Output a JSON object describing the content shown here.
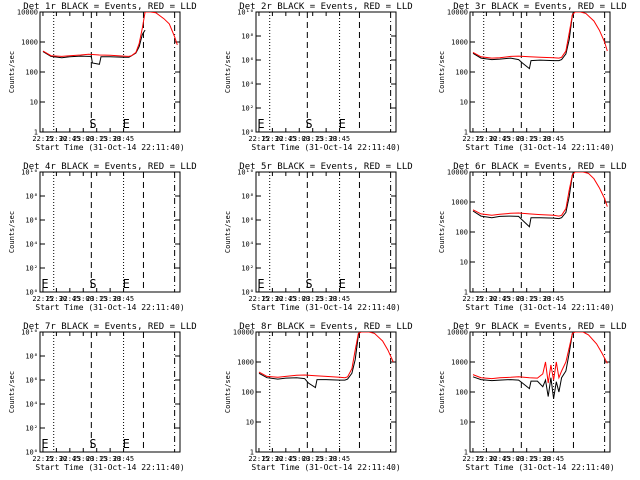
{
  "x_tick_labels": [
    "22:15",
    "22:30",
    "22:45",
    "23:00",
    "23:15",
    "23:30",
    "23:45"
  ],
  "xlabel": "Start Time (31-Oct-14 22:11:40)",
  "ylabel": "Counts/sec",
  "colors": {
    "events": "#000000",
    "lld": "#ff0000",
    "axis": "#000000",
    "background": "#ffffff"
  },
  "chart_data": [
    {
      "type": "line",
      "title": "Det 1r BLACK = Events, RED = LLD",
      "ylog": true,
      "ylim": [
        1,
        10000
      ],
      "y_tick_labels": [
        "1",
        "10",
        "100",
        "1000",
        "10000"
      ],
      "markers": {
        "show": true,
        "S": "S",
        "E": "E"
      },
      "series": [
        {
          "name": "Events",
          "color": "#000000",
          "values": [
            [
              22.25,
              480
            ],
            [
              22.4,
              330
            ],
            [
              22.6,
              300
            ],
            [
              22.75,
              320
            ],
            [
              22.95,
              340
            ],
            [
              23.1,
              330
            ],
            [
              23.15,
              330
            ],
            [
              23.17,
              200
            ],
            [
              23.3,
              180
            ],
            [
              23.33,
              320
            ],
            [
              23.5,
              320
            ],
            [
              23.75,
              310
            ],
            [
              23.85,
              310
            ],
            [
              23.9,
              350
            ],
            [
              23.98,
              430
            ],
            [
              24.04,
              700
            ],
            [
              24.1,
              1800
            ],
            [
              24.15,
              2500
            ]
          ]
        },
        {
          "name": "LLD",
          "color": "#ff0000",
          "values": [
            [
              22.25,
              500
            ],
            [
              22.4,
              350
            ],
            [
              22.6,
              330
            ],
            [
              22.75,
              350
            ],
            [
              22.95,
              370
            ],
            [
              23.1,
              390
            ],
            [
              23.3,
              370
            ],
            [
              23.5,
              360
            ],
            [
              23.75,
              340
            ],
            [
              23.85,
              330
            ],
            [
              23.9,
              350
            ],
            [
              23.98,
              450
            ],
            [
              24.04,
              900
            ],
            [
              24.1,
              3000
            ],
            [
              24.15,
              10000
            ],
            [
              24.25,
              10000
            ],
            [
              24.35,
              9500
            ],
            [
              24.5,
              6000
            ],
            [
              24.6,
              4000
            ],
            [
              24.7,
              1500
            ],
            [
              24.75,
              800
            ]
          ]
        }
      ]
    },
    {
      "type": "line",
      "title": "Det 2r BLACK = Events, RED = LLD",
      "ylog": true,
      "ylim": [
        1,
        10000000000
      ],
      "y_tick_labels": [
        "10⁰",
        "10²",
        "10⁴",
        "10⁶",
        "10⁸",
        "10¹⁰"
      ],
      "markers": {
        "show": true,
        "S": "S",
        "E": "E"
      },
      "series": []
    },
    {
      "type": "line",
      "title": "Det 3r BLACK = Events, RED = LLD",
      "ylog": true,
      "ylim": [
        1,
        10000
      ],
      "y_tick_labels": [
        "1",
        "10",
        "100",
        "1000",
        "10000"
      ],
      "markers": {
        "show": false,
        "S": "S",
        "E": "E"
      },
      "series": [
        {
          "name": "Events",
          "color": "#000000",
          "values": [
            [
              22.25,
              420
            ],
            [
              22.4,
              290
            ],
            [
              22.6,
              260
            ],
            [
              22.75,
              270
            ],
            [
              22.95,
              290
            ],
            [
              23.1,
              260
            ],
            [
              23.17,
              200
            ],
            [
              23.3,
              130
            ],
            [
              23.33,
              240
            ],
            [
              23.5,
              250
            ],
            [
              23.75,
              240
            ],
            [
              23.85,
              240
            ],
            [
              23.9,
              260
            ],
            [
              23.98,
              400
            ],
            [
              24.04,
              1200
            ],
            [
              24.1,
              8000
            ],
            [
              24.12,
              10000
            ]
          ]
        },
        {
          "name": "LLD",
          "color": "#ff0000",
          "values": [
            [
              22.25,
              450
            ],
            [
              22.4,
              320
            ],
            [
              22.6,
              290
            ],
            [
              22.75,
              300
            ],
            [
              22.95,
              330
            ],
            [
              23.1,
              340
            ],
            [
              23.3,
              320
            ],
            [
              23.5,
              310
            ],
            [
              23.75,
              300
            ],
            [
              23.85,
              290
            ],
            [
              23.9,
              310
            ],
            [
              23.98,
              500
            ],
            [
              24.04,
              2000
            ],
            [
              24.1,
              8000
            ],
            [
              24.15,
              10000
            ],
            [
              24.25,
              10000
            ],
            [
              24.35,
              9000
            ],
            [
              24.5,
              5000
            ],
            [
              24.6,
              2500
            ],
            [
              24.7,
              1000
            ],
            [
              24.75,
              500
            ]
          ]
        }
      ]
    },
    {
      "type": "line",
      "title": "Det 4r BLACK = Events, RED = LLD",
      "ylog": true,
      "ylim": [
        1,
        10000000000
      ],
      "y_tick_labels": [
        "10⁰",
        "10²",
        "10⁴",
        "10⁶",
        "10⁸",
        "10¹⁰"
      ],
      "markers": {
        "show": true,
        "S": "S",
        "E": "E"
      },
      "series": []
    },
    {
      "type": "line",
      "title": "Det 5r BLACK = Events, RED = LLD",
      "ylog": true,
      "ylim": [
        1,
        10000000000
      ],
      "y_tick_labels": [
        "10⁰",
        "10²",
        "10⁴",
        "10⁶",
        "10⁸",
        "10¹⁰"
      ],
      "markers": {
        "show": true,
        "S": "S",
        "E": "E"
      },
      "series": []
    },
    {
      "type": "line",
      "title": "Det 6r BLACK = Events, RED = LLD",
      "ylog": true,
      "ylim": [
        1,
        10000
      ],
      "y_tick_labels": [
        "1",
        "10",
        "100",
        "1000",
        "10000"
      ],
      "markers": {
        "show": false,
        "S": "S",
        "E": "E"
      },
      "series": [
        {
          "name": "Events",
          "color": "#000000",
          "values": [
            [
              22.25,
              500
            ],
            [
              22.4,
              340
            ],
            [
              22.6,
              300
            ],
            [
              22.75,
              330
            ],
            [
              22.95,
              340
            ],
            [
              23.1,
              330
            ],
            [
              23.17,
              250
            ],
            [
              23.3,
              150
            ],
            [
              23.33,
              300
            ],
            [
              23.5,
              300
            ],
            [
              23.75,
              290
            ],
            [
              23.85,
              280
            ],
            [
              23.9,
              300
            ],
            [
              23.98,
              450
            ],
            [
              24.04,
              1500
            ],
            [
              24.1,
              8000
            ],
            [
              24.12,
              10000
            ]
          ]
        },
        {
          "name": "LLD",
          "color": "#ff0000",
          "values": [
            [
              22.25,
              550
            ],
            [
              22.4,
              400
            ],
            [
              22.6,
              360
            ],
            [
              22.75,
              390
            ],
            [
              22.95,
              420
            ],
            [
              23.1,
              430
            ],
            [
              23.3,
              400
            ],
            [
              23.5,
              380
            ],
            [
              23.75,
              360
            ],
            [
              23.85,
              340
            ],
            [
              23.9,
              360
            ],
            [
              23.98,
              600
            ],
            [
              24.04,
              2500
            ],
            [
              24.1,
              8000
            ],
            [
              24.15,
              10000
            ],
            [
              24.3,
              10000
            ],
            [
              24.4,
              9000
            ],
            [
              24.5,
              6000
            ],
            [
              24.6,
              3000
            ],
            [
              24.7,
              1300
            ],
            [
              24.75,
              700
            ]
          ]
        }
      ]
    },
    {
      "type": "line",
      "title": "Det 7r BLACK = Events, RED = LLD",
      "ylog": true,
      "ylim": [
        1,
        10000000000
      ],
      "y_tick_labels": [
        "10⁰",
        "10²",
        "10⁴",
        "10⁶",
        "10⁸",
        "10¹⁰"
      ],
      "markers": {
        "show": true,
        "S": "S",
        "E": "E"
      },
      "series": []
    },
    {
      "type": "line",
      "title": "Det 8r BLACK = Events, RED = LLD",
      "ylog": true,
      "ylim": [
        1,
        10000
      ],
      "y_tick_labels": [
        "1",
        "10",
        "100",
        "1000",
        "10000"
      ],
      "markers": {
        "show": false,
        "S": "S",
        "E": "E"
      },
      "series": [
        {
          "name": "Events",
          "color": "#000000",
          "values": [
            [
              22.25,
              420
            ],
            [
              22.4,
              300
            ],
            [
              22.6,
              270
            ],
            [
              22.75,
              290
            ],
            [
              22.95,
              300
            ],
            [
              23.1,
              280
            ],
            [
              23.17,
              200
            ],
            [
              23.3,
              140
            ],
            [
              23.33,
              260
            ],
            [
              23.5,
              260
            ],
            [
              23.75,
              250
            ],
            [
              23.85,
              250
            ],
            [
              23.9,
              270
            ],
            [
              23.98,
              420
            ],
            [
              24.04,
              1200
            ],
            [
              24.1,
              8000
            ],
            [
              24.12,
              10000
            ]
          ]
        },
        {
          "name": "LLD",
          "color": "#ff0000",
          "values": [
            [
              22.25,
              460
            ],
            [
              22.4,
              330
            ],
            [
              22.6,
              310
            ],
            [
              22.75,
              330
            ],
            [
              22.95,
              360
            ],
            [
              23.1,
              370
            ],
            [
              23.3,
              350
            ],
            [
              23.5,
              330
            ],
            [
              23.75,
              310
            ],
            [
              23.85,
              300
            ],
            [
              23.9,
              320
            ],
            [
              23.98,
              600
            ],
            [
              24.04,
              2500
            ],
            [
              24.1,
              9000
            ],
            [
              24.15,
              10000
            ],
            [
              24.3,
              10000
            ],
            [
              24.4,
              9000
            ],
            [
              24.55,
              5000
            ],
            [
              24.65,
              2500
            ],
            [
              24.75,
              1000
            ]
          ]
        }
      ]
    },
    {
      "type": "line",
      "title": "Det 9r BLACK = Events, RED = LLD",
      "ylog": true,
      "ylim": [
        1,
        10000
      ],
      "y_tick_labels": [
        "1",
        "10",
        "100",
        "1000",
        "10000"
      ],
      "markers": {
        "show": false,
        "S": "S",
        "E": "E"
      },
      "series": [
        {
          "name": "Events",
          "color": "#000000",
          "values": [
            [
              22.25,
              320
            ],
            [
              22.4,
              260
            ],
            [
              22.6,
              240
            ],
            [
              22.75,
              250
            ],
            [
              22.95,
              260
            ],
            [
              23.1,
              250
            ],
            [
              23.17,
              200
            ],
            [
              23.3,
              130
            ],
            [
              23.33,
              230
            ],
            [
              23.45,
              230
            ],
            [
              23.55,
              150
            ],
            [
              23.6,
              250
            ],
            [
              23.65,
              70
            ],
            [
              23.7,
              300
            ],
            [
              23.75,
              60
            ],
            [
              23.8,
              220
            ],
            [
              23.85,
              100
            ],
            [
              23.9,
              300
            ],
            [
              23.98,
              500
            ],
            [
              24.04,
              2000
            ],
            [
              24.1,
              9000
            ],
            [
              24.12,
              10000
            ]
          ]
        },
        {
          "name": "LLD",
          "color": "#ff0000",
          "values": [
            [
              22.25,
              380
            ],
            [
              22.4,
              300
            ],
            [
              22.6,
              280
            ],
            [
              22.75,
              300
            ],
            [
              22.95,
              310
            ],
            [
              23.1,
              320
            ],
            [
              23.3,
              300
            ],
            [
              23.45,
              290
            ],
            [
              23.55,
              400
            ],
            [
              23.6,
              1000
            ],
            [
              23.65,
              200
            ],
            [
              23.7,
              800
            ],
            [
              23.75,
              250
            ],
            [
              23.8,
              1000
            ],
            [
              23.85,
              300
            ],
            [
              23.9,
              500
            ],
            [
              23.98,
              1000
            ],
            [
              24.04,
              3000
            ],
            [
              24.1,
              9000
            ],
            [
              24.15,
              10000
            ],
            [
              24.3,
              10000
            ],
            [
              24.4,
              8000
            ],
            [
              24.55,
              4000
            ],
            [
              24.65,
              2000
            ],
            [
              24.75,
              900
            ]
          ]
        }
      ]
    }
  ]
}
